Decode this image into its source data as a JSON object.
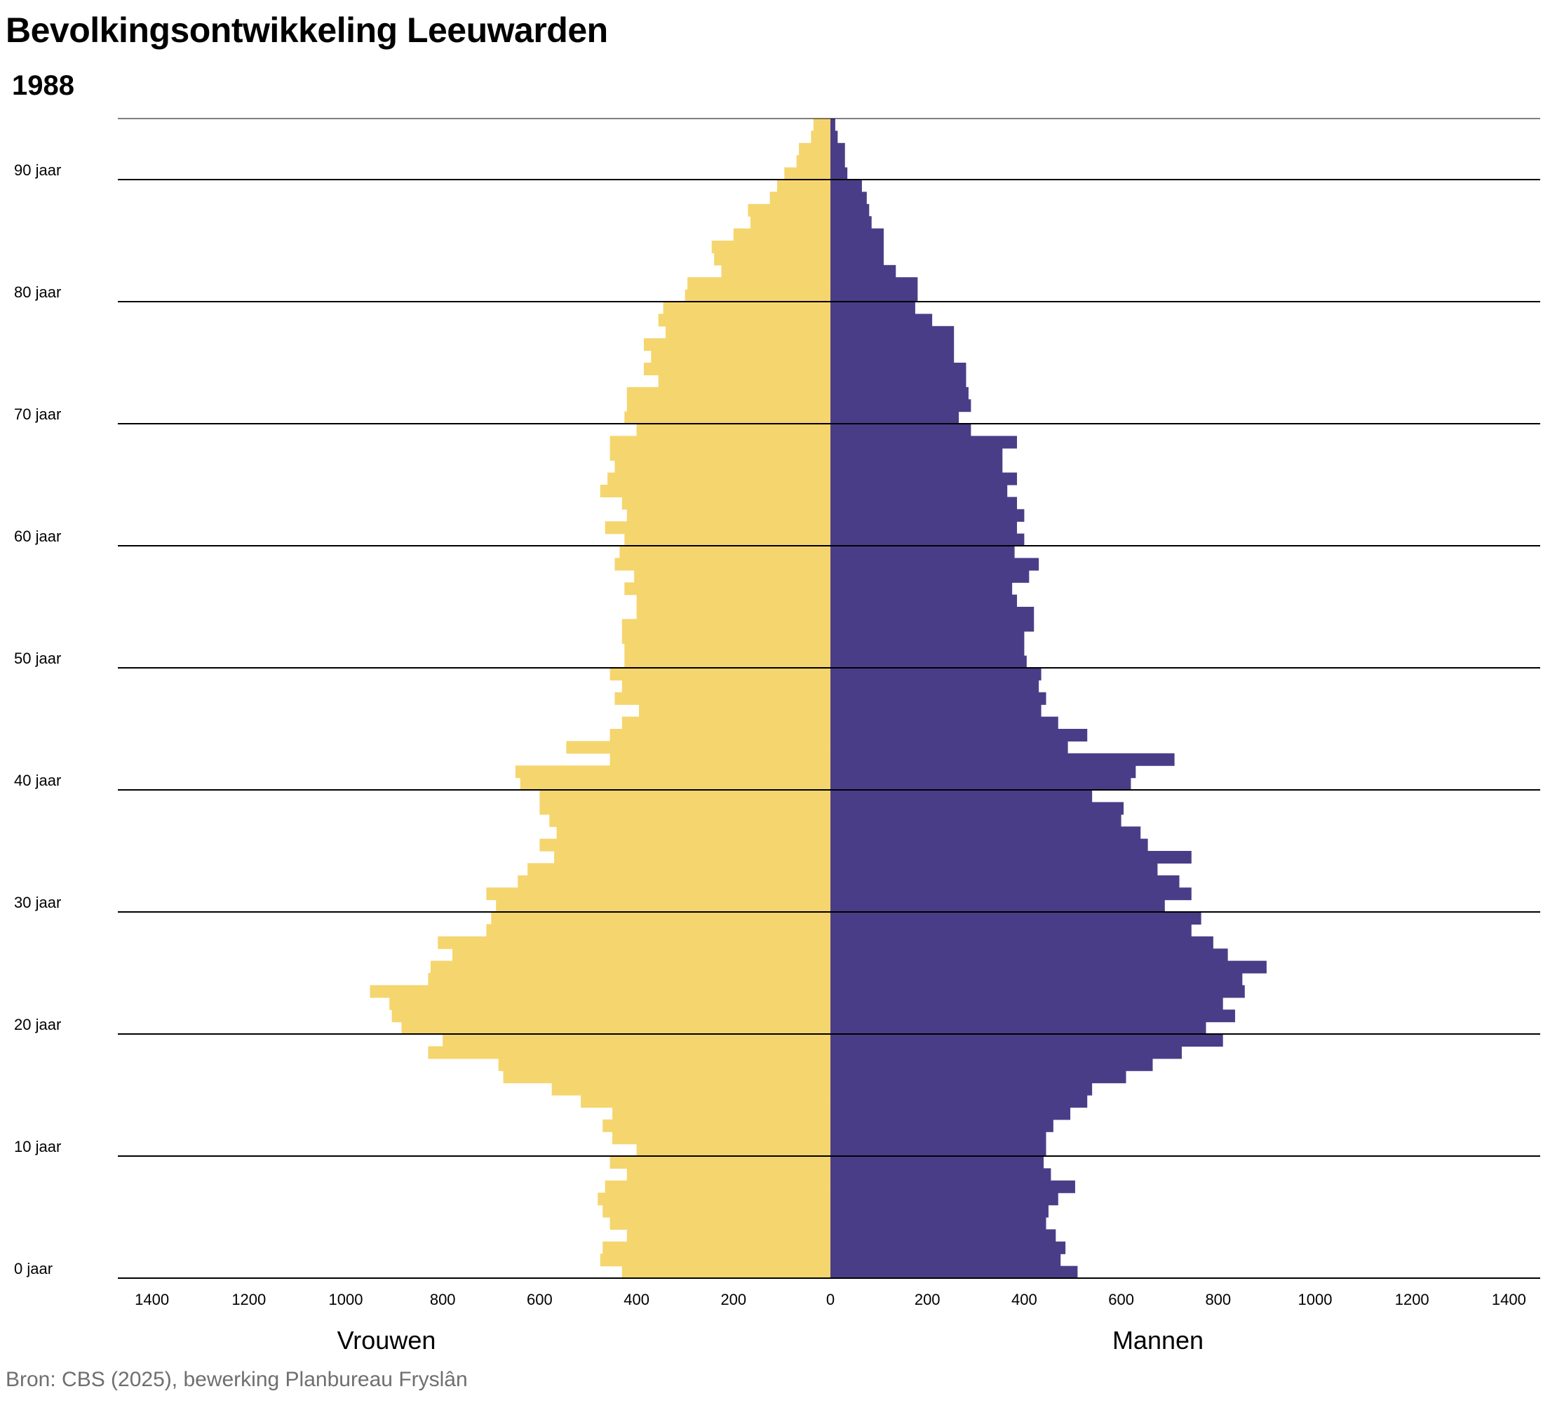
{
  "title": "Bevolkingsontwikkeling Leeuwarden",
  "subtitle": "1988",
  "source": "Bron: CBS (2025), bewerking Planbureau Fryslân",
  "colors": {
    "women": "#f5d56e",
    "men": "#4a3d88",
    "gridline": "#000000"
  },
  "chart_data": {
    "type": "bar",
    "orientation": "horizontal-population-pyramid",
    "title": "Bevolkingsontwikkeling Leeuwarden",
    "subtitle": "1988",
    "age_labels": [
      "0 jaar",
      "10 jaar",
      "20 jaar",
      "30 jaar",
      "40 jaar",
      "50 jaar",
      "60 jaar",
      "70 jaar",
      "80 jaar",
      "90 jaar"
    ],
    "x_ticks": [
      "1400",
      "1200",
      "1000",
      "800",
      "600",
      "400",
      "200",
      "0",
      "200",
      "400",
      "600",
      "800",
      "1000",
      "1200",
      "1400"
    ],
    "xlim": [
      -1470,
      1470
    ],
    "ages": [
      0,
      1,
      2,
      3,
      4,
      5,
      6,
      7,
      8,
      9,
      10,
      11,
      12,
      13,
      14,
      15,
      16,
      17,
      18,
      19,
      20,
      21,
      22,
      23,
      24,
      25,
      26,
      27,
      28,
      29,
      30,
      31,
      32,
      33,
      34,
      35,
      36,
      37,
      38,
      39,
      40,
      41,
      42,
      43,
      44,
      45,
      46,
      47,
      48,
      49,
      50,
      51,
      52,
      53,
      54,
      55,
      56,
      57,
      58,
      59,
      60,
      61,
      62,
      63,
      64,
      65,
      66,
      67,
      68,
      69,
      70,
      71,
      72,
      73,
      74,
      75,
      76,
      77,
      78,
      79,
      80,
      81,
      82,
      83,
      84,
      85,
      86,
      87,
      88,
      89,
      90,
      91,
      92,
      93,
      94
    ],
    "series": [
      {
        "name": "Vrouwen",
        "values": [
          430,
          475,
          470,
          420,
          455,
          470,
          480,
          465,
          420,
          455,
          400,
          450,
          470,
          450,
          515,
          575,
          675,
          685,
          830,
          800,
          885,
          905,
          910,
          950,
          830,
          825,
          780,
          810,
          710,
          700,
          690,
          710,
          645,
          625,
          570,
          600,
          565,
          580,
          600,
          600,
          640,
          650,
          455,
          545,
          455,
          430,
          395,
          445,
          430,
          455,
          425,
          425,
          430,
          430,
          400,
          400,
          425,
          405,
          445,
          435,
          425,
          465,
          420,
          430,
          475,
          460,
          445,
          455,
          455,
          400,
          425,
          420,
          420,
          355,
          385,
          370,
          385,
          340,
          355,
          345,
          300,
          295,
          225,
          240,
          245,
          200,
          165,
          170,
          125,
          110,
          95,
          70,
          65,
          40,
          35
        ]
      },
      {
        "name": "Mannen",
        "values": [
          510,
          475,
          485,
          465,
          445,
          450,
          470,
          505,
          455,
          440,
          445,
          445,
          460,
          495,
          530,
          540,
          610,
          665,
          725,
          810,
          775,
          835,
          810,
          855,
          850,
          900,
          820,
          790,
          745,
          765,
          690,
          745,
          720,
          675,
          745,
          655,
          640,
          600,
          605,
          540,
          620,
          630,
          710,
          490,
          530,
          470,
          435,
          445,
          430,
          435,
          405,
          400,
          400,
          420,
          420,
          385,
          375,
          410,
          430,
          380,
          400,
          385,
          400,
          385,
          365,
          385,
          355,
          355,
          385,
          290,
          265,
          290,
          285,
          280,
          280,
          255,
          255,
          255,
          210,
          175,
          180,
          180,
          135,
          110,
          110,
          110,
          85,
          80,
          75,
          65,
          35,
          30,
          30,
          15,
          10
        ]
      }
    ],
    "legend": "bottom",
    "xlabel_left": "Vrouwen",
    "xlabel_right": "Mannen",
    "grid": true
  }
}
